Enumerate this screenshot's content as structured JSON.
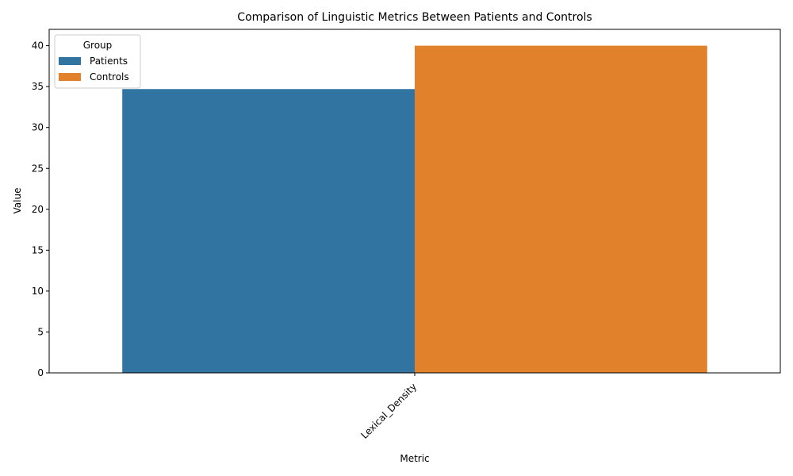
{
  "chart_data": {
    "type": "bar",
    "title": "Comparison of Linguistic Metrics Between Patients and Controls",
    "xlabel": "Metric",
    "ylabel": "Value",
    "categories": [
      "Lexical_Density"
    ],
    "series": [
      {
        "name": "Patients",
        "color": "#3274a1",
        "values": [
          34.7
        ]
      },
      {
        "name": "Controls",
        "color": "#e1812c",
        "values": [
          40.0
        ]
      }
    ],
    "ylim": [
      0,
      42
    ],
    "yticks": [
      0,
      5,
      10,
      15,
      20,
      25,
      30,
      35,
      40
    ],
    "grid": false,
    "legend": {
      "title": "Group",
      "placement": "top-left"
    }
  }
}
